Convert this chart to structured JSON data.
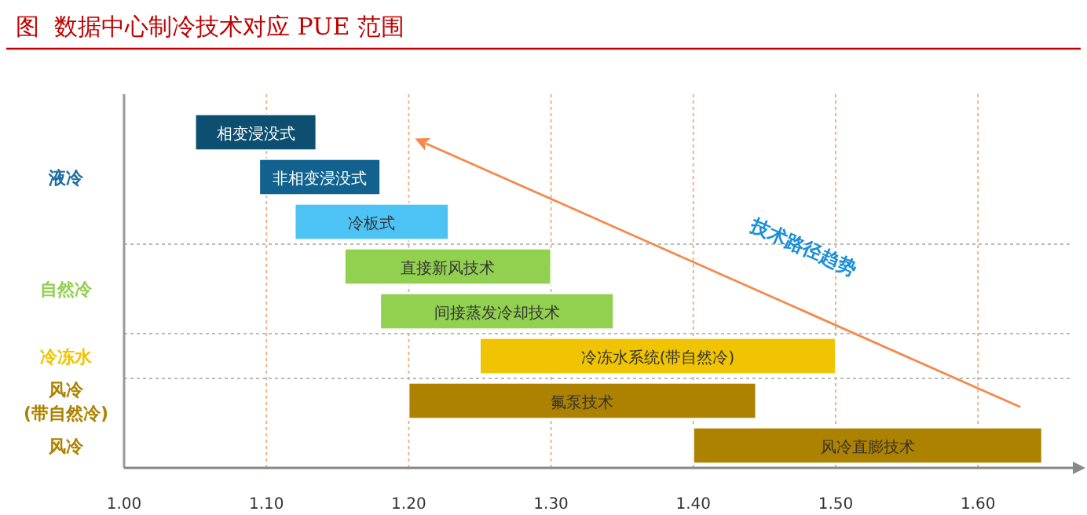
{
  "chart_data": {
    "type": "bar",
    "orientation": "horizontal",
    "title": "图  数据中心制冷技术对应 PUE 范围",
    "categories": [
      "相变浸没式",
      "非相变浸没式",
      "冷板式",
      "直接新风技术",
      "间接蒸发冷却技术",
      "冷冻水系统(带自然冷)",
      "氟泵技术",
      "风冷直膨技术"
    ],
    "base": [
      1.05,
      1.095,
      1.12,
      1.155,
      1.18,
      1.25,
      1.2,
      1.4
    ],
    "values": [
      0.085,
      0.085,
      0.108,
      0.145,
      0.164,
      0.25,
      0.244,
      0.245
    ],
    "colors": [
      "#0c4f70",
      "#11628f",
      "#4dc3f5",
      "#92d050",
      "#92d050",
      "#f0c400",
      "#ad8200",
      "#ad8200"
    ],
    "xlim": [
      1.0,
      1.67
    ],
    "xticks": [
      {
        "value": 1.0,
        "label": "1.00"
      },
      {
        "value": 1.1,
        "label": "1.10"
      },
      {
        "value": 1.2,
        "label": "1.20"
      },
      {
        "value": 1.3,
        "label": "1.30"
      },
      {
        "value": 1.4,
        "label": "1.40"
      },
      {
        "value": 1.5,
        "label": "1.50"
      },
      {
        "value": 1.6,
        "label": "1.60"
      }
    ],
    "grid": "x",
    "annotations": [
      "液冷",
      "自然冷",
      "冷冻水",
      "风冷\n(带自然冷)",
      "风冷",
      "技术路径趋势"
    ]
  }
}
